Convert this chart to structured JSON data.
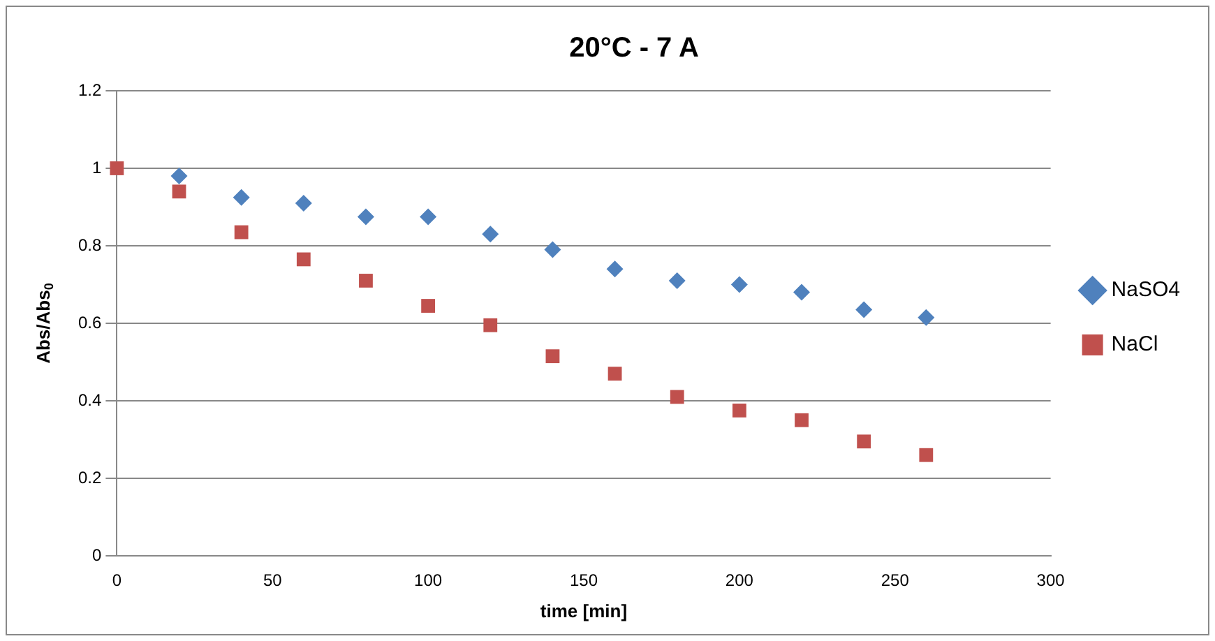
{
  "chart_data": {
    "type": "scatter",
    "title": "20°C - 7 A",
    "xlabel": "time [min]",
    "ylabel": "Abs/Abs$_{0}$",
    "series": [
      {
        "name": "NaSO4",
        "color": "#4f81bd",
        "marker": "diamond",
        "x": [
          20,
          40,
          60,
          80,
          100,
          120,
          140,
          160,
          180,
          200,
          220,
          240,
          260
        ],
        "values": [
          0.98,
          0.925,
          0.91,
          0.875,
          0.875,
          0.83,
          0.79,
          0.74,
          0.71,
          0.7,
          0.68,
          0.635,
          0.615
        ]
      },
      {
        "name": "NaCl",
        "color": "#c0504d",
        "marker": "square",
        "x": [
          0,
          20,
          40,
          60,
          80,
          100,
          120,
          140,
          160,
          180,
          200,
          220,
          240,
          260
        ],
        "values": [
          1,
          0.94,
          0.835,
          0.765,
          0.71,
          0.645,
          0.595,
          0.515,
          0.47,
          0.41,
          0.375,
          0.35,
          0.295,
          0.26
        ]
      }
    ],
    "xlim": [
      0,
      300
    ],
    "xticks": [
      0,
      50,
      100,
      150,
      200,
      250,
      300
    ],
    "ylim": [
      0,
      1.2
    ],
    "yticks": [
      0,
      0.2,
      0.4,
      0.6,
      0.8,
      1,
      1.2
    ],
    "grid": "y",
    "legend": "right"
  }
}
